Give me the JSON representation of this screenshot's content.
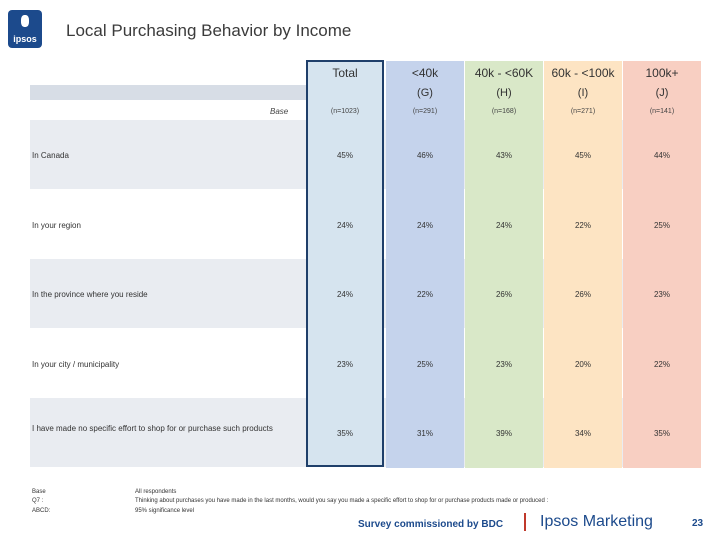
{
  "header": {
    "logo_text": "ipsos",
    "title": "Local Purchasing Behavior by Income"
  },
  "columns": [
    {
      "label": "Total",
      "code": "",
      "base": "(n=1023)"
    },
    {
      "label": "<40k",
      "code": "(G)",
      "base": "(n=291)"
    },
    {
      "label": "40k - <60K",
      "code": "(H)",
      "base": "(n=168)"
    },
    {
      "label": "60k - <100k",
      "code": "(I)",
      "base": "(n=271)"
    },
    {
      "label": "100k+",
      "code": "(J)",
      "base": "(n=141)"
    }
  ],
  "base_label": "Base",
  "rows": [
    {
      "label": "In Canada",
      "values": [
        "45%",
        "46%",
        "43%",
        "45%",
        "44%"
      ]
    },
    {
      "label": "In your region",
      "values": [
        "24%",
        "24%",
        "24%",
        "22%",
        "25%"
      ]
    },
    {
      "label": "In the province where you reside",
      "values": [
        "24%",
        "22%",
        "26%",
        "26%",
        "23%"
      ]
    },
    {
      "label": "In your city / municipality",
      "values": [
        "23%",
        "25%",
        "23%",
        "20%",
        "22%"
      ]
    },
    {
      "label": "I have made no specific effort to shop for or purchase such products",
      "values": [
        "35%",
        "31%",
        "39%",
        "34%",
        "35%"
      ]
    }
  ],
  "footnotes": {
    "base_key": "Base",
    "base_val": "All respondents",
    "q_key": "Q7 :",
    "q_val": "Thinking about purchases you have made in the last months, would you say you made a specific effort to shop for or purchase products made or produced :",
    "abcd_key": "ABCD:",
    "abcd_val": "95% significance level"
  },
  "footer": {
    "commission": "Survey commissioned by BDC",
    "brand": "Ipsos Marketing",
    "page": "23"
  },
  "colors": {
    "brand_blue": "#1c4a8c",
    "total_col": "#d6e4ef",
    "g_col": "#c5d3ec",
    "h_col": "#d9e8c8",
    "i_col": "#fde4c3",
    "j_col": "#f8cfc2"
  }
}
